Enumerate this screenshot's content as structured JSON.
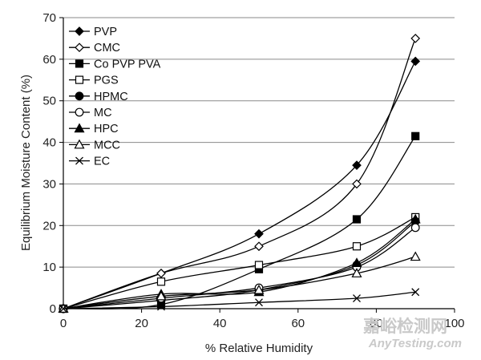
{
  "chart_data": {
    "type": "line",
    "xlabel": "% Relative Humidity",
    "ylabel": "Equilibrium Moisture Content (%)",
    "xlim": [
      0,
      100
    ],
    "ylim": [
      0,
      70
    ],
    "x_ticks": [
      0,
      20,
      40,
      60,
      80,
      100
    ],
    "y_ticks": [
      0,
      10,
      20,
      30,
      40,
      50,
      60,
      70
    ],
    "grid": "horizontal",
    "legend_position": "top-left",
    "series": [
      {
        "name": "PVP",
        "marker": "diamond-filled",
        "x": [
          0,
          25,
          50,
          75,
          90
        ],
        "values": [
          0,
          8.5,
          18,
          34.5,
          59.5
        ]
      },
      {
        "name": "CMC",
        "marker": "diamond-open",
        "x": [
          0,
          25,
          50,
          75,
          90
        ],
        "values": [
          0,
          8.5,
          15,
          30,
          65
        ]
      },
      {
        "name": "Co PVP PVA",
        "marker": "square-filled",
        "x": [
          0,
          25,
          50,
          75,
          90
        ],
        "values": [
          0,
          1,
          9.5,
          21.5,
          41.5
        ]
      },
      {
        "name": "PGS",
        "marker": "square-open",
        "x": [
          0,
          25,
          50,
          75,
          90
        ],
        "values": [
          0,
          6.5,
          10.5,
          15,
          22
        ]
      },
      {
        "name": "HPMC",
        "marker": "circle-filled",
        "x": [
          0,
          25,
          50,
          75,
          90
        ],
        "values": [
          0,
          2,
          4.5,
          10.5,
          21
        ]
      },
      {
        "name": "MC",
        "marker": "circle-open",
        "x": [
          0,
          25,
          50,
          75,
          90
        ],
        "values": [
          0,
          2.5,
          5,
          10,
          19.5
        ]
      },
      {
        "name": "HPC",
        "marker": "triangle-filled",
        "x": [
          0,
          25,
          50,
          75,
          90
        ],
        "values": [
          0,
          3.5,
          4,
          11,
          21.5
        ]
      },
      {
        "name": "MCC",
        "marker": "triangle-open",
        "x": [
          0,
          25,
          50,
          75,
          90
        ],
        "values": [
          0,
          3,
          4.5,
          8.5,
          12.5
        ]
      },
      {
        "name": "EC",
        "marker": "x",
        "x": [
          0,
          25,
          50,
          75,
          90
        ],
        "values": [
          0,
          0.5,
          1.5,
          2.5,
          4
        ]
      }
    ]
  },
  "watermark": {
    "chinese": "嘉峪检测网",
    "english": "AnyTesting.com"
  }
}
